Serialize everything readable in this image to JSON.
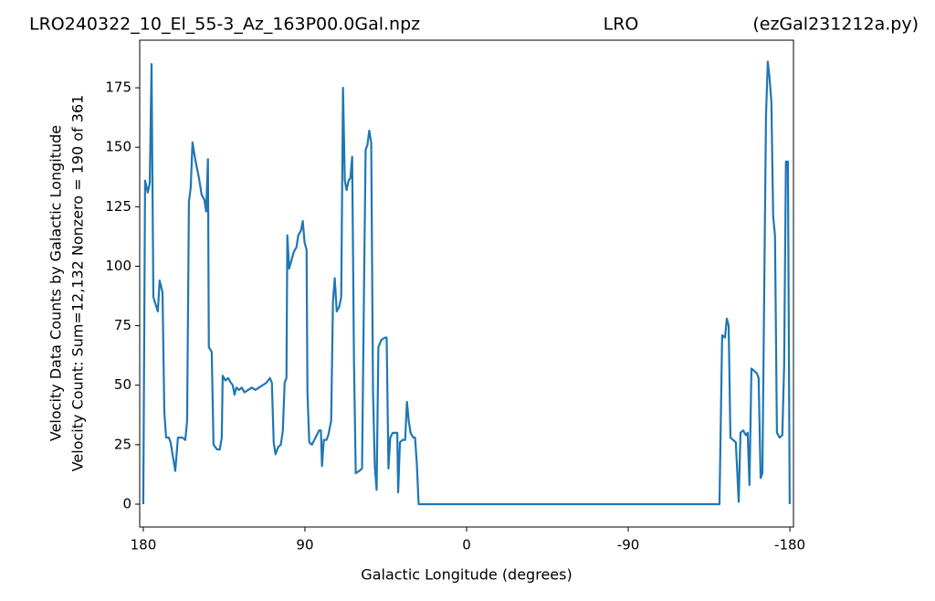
{
  "chart_data": {
    "type": "line",
    "title": "LRO240322_10_El_55-3_Az_163P00.0Gal.npz",
    "title_center": "LRO",
    "title_right": "(ezGal231212a.py)",
    "xlabel": "Galactic Longitude (degrees)",
    "ylabel": [
      "Velocity Data Counts by Galactic Longitude",
      "Velocity Count: Sum=12,132 Nonzero = 190 of 361"
    ],
    "xlim": [
      182,
      -182
    ],
    "ylim": [
      -9.6,
      195
    ],
    "xticks": [
      180,
      90,
      0,
      -90,
      -180
    ],
    "yticks": [
      0,
      25,
      50,
      75,
      100,
      125,
      150,
      175
    ],
    "grid": false,
    "series": [
      {
        "color": "#1f77b4",
        "x": [
          180,
          179,
          177.5,
          176.4,
          175.4,
          174.4,
          171.9,
          170.9,
          169.3,
          168.3,
          167.3,
          165.8,
          164.8,
          162.2,
          160.7,
          158.2,
          156.6,
          155.6,
          154.6,
          153.6,
          152.6,
          151.1,
          149,
          147.5,
          146,
          145,
          144,
          143.5,
          141.9,
          140.9,
          138.9,
          137.4,
          136.3,
          135.8,
          134.3,
          132.8,
          131.2,
          130.2,
          129.2,
          128.2,
          126.7,
          125.2,
          123.7,
          121.6,
          119.6,
          117.6,
          115.6,
          113.5,
          111.5,
          109.5,
          108.4,
          107.4,
          106.4,
          104.9,
          103.4,
          102.3,
          101.3,
          100.3,
          99.8,
          98.8,
          96.2,
          94.7,
          93.7,
          92.2,
          91.2,
          90.2,
          89.1,
          88.6,
          87.6,
          86.1,
          84.1,
          82.1,
          81.1,
          80.5,
          79.5,
          78,
          77,
          75.4,
          74.4,
          73.4,
          72.3,
          70.9,
          69.8,
          68.8,
          67.8,
          66.8,
          65.7,
          64.7,
          63.7,
          62.7,
          61.7,
          59.7,
          58.2,
          57.2,
          56.2,
          55.2,
          54.2,
          53.1,
          52.1,
          51.1,
          50.1,
          49.1,
          47.5,
          45.5,
          44.5,
          43.5,
          42.5,
          41.1,
          39.6,
          38.6,
          38.1,
          37.1,
          35.7,
          34.2,
          33.2,
          32.2,
          31.2,
          29.7,
          28.7,
          27.7,
          26.7,
          -140.8,
          -142.3,
          -143.9,
          -144.9,
          -145.9,
          -146.9,
          -148.4,
          -149.9,
          -151.5,
          -152.5,
          -154,
          -155.5,
          -156.5,
          -157.5,
          -158.6,
          -160.1,
          -161.6,
          -162.6,
          -163.7,
          -164.7,
          -166.7,
          -167.7,
          -168.7,
          -169.7,
          -170.7,
          -171.7,
          -172.8,
          -174.3,
          -175.8,
          -176.8,
          -177.8,
          -178.9,
          -179.9
        ],
        "values": [
          0,
          136,
          131,
          135,
          185,
          87,
          81,
          94,
          89,
          39,
          28,
          28,
          26,
          14,
          28,
          28,
          27,
          35,
          127,
          133,
          152,
          145,
          137,
          130,
          128,
          123,
          145,
          66,
          64,
          25,
          23,
          23,
          28,
          54,
          52,
          53,
          51,
          50,
          46,
          49,
          48,
          49,
          47,
          48,
          49,
          48,
          49,
          50,
          51,
          53,
          51,
          26,
          21,
          24,
          25,
          31,
          51,
          53,
          113,
          99,
          106,
          108,
          113,
          115,
          119,
          110,
          107,
          47,
          26,
          25,
          28,
          31,
          31,
          16,
          27,
          27,
          29,
          35,
          85,
          95,
          81,
          83,
          87,
          175,
          136,
          132,
          136,
          137,
          146,
          60,
          13,
          14,
          15,
          85,
          149,
          151,
          157,
          152,
          47,
          16,
          6,
          66,
          69,
          70,
          70,
          15,
          28,
          30,
          30,
          30,
          5,
          26,
          27,
          27,
          43,
          35,
          30,
          28,
          28,
          17,
          0,
          0,
          71,
          70,
          78,
          75,
          28,
          27,
          26,
          1,
          30,
          31,
          29,
          30,
          8,
          57,
          56,
          55,
          53,
          11,
          13,
          163,
          186,
          179,
          169,
          121,
          113,
          30,
          28,
          29,
          58,
          144,
          144,
          0
        ]
      }
    ]
  }
}
